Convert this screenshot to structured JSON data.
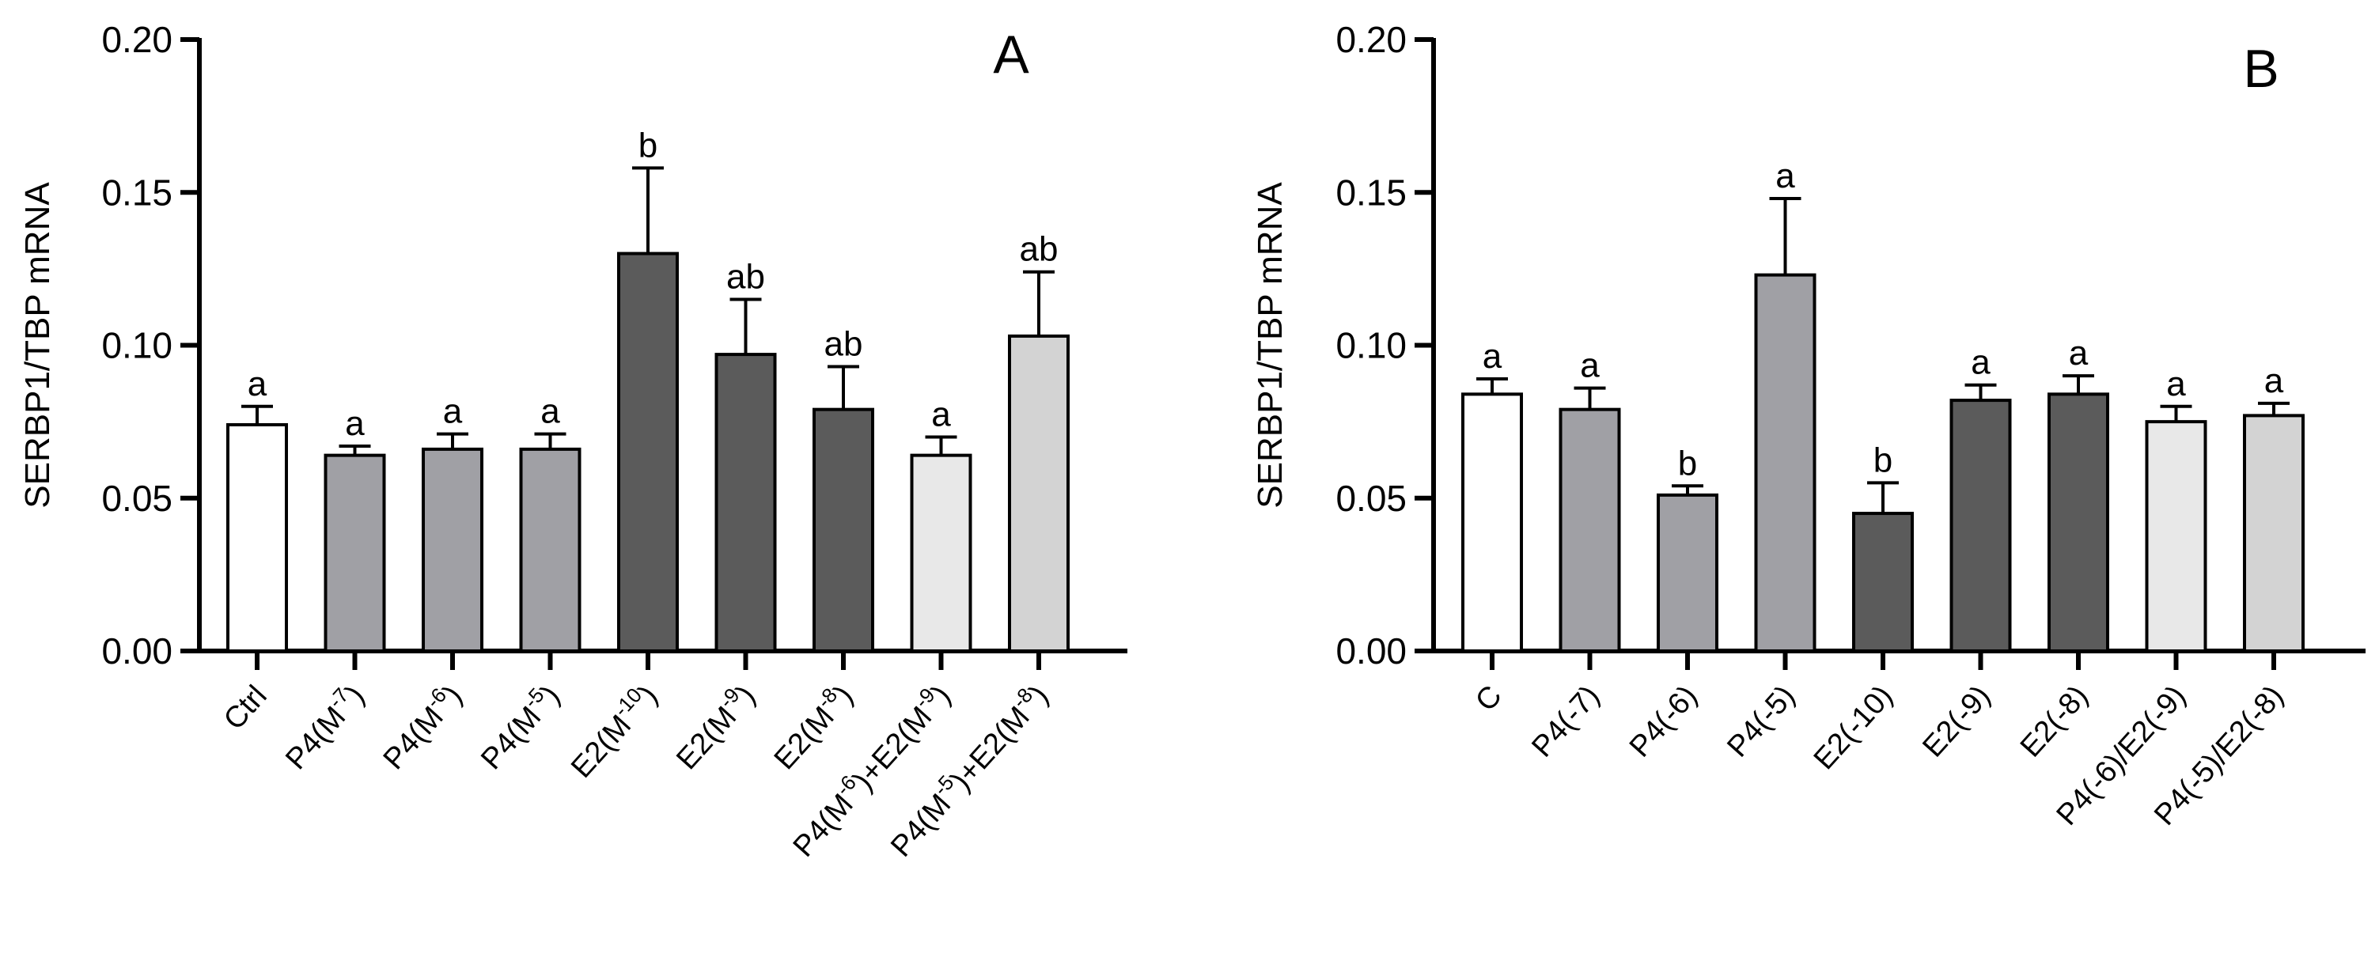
{
  "chart_data": [
    {
      "type": "bar",
      "panel_label": "A",
      "ylabel": "SERBP1/TBP mRNA",
      "xlabel": "",
      "ylim": [
        0,
        0.2
      ],
      "yticks": [
        "0.00",
        "0.05",
        "0.10",
        "0.15",
        "0.20"
      ],
      "categories": [
        {
          "parts": [
            {
              "t": "Ctrl"
            }
          ]
        },
        {
          "parts": [
            {
              "t": "P4(M"
            },
            {
              "t": "-7",
              "sup": true
            },
            {
              "t": ")"
            }
          ]
        },
        {
          "parts": [
            {
              "t": "P4(M"
            },
            {
              "t": "-6",
              "sup": true
            },
            {
              "t": ")"
            }
          ]
        },
        {
          "parts": [
            {
              "t": "P4(M"
            },
            {
              "t": "-5",
              "sup": true
            },
            {
              "t": ")"
            }
          ]
        },
        {
          "parts": [
            {
              "t": "E2(M"
            },
            {
              "t": "-10",
              "sup": true
            },
            {
              "t": ")"
            }
          ]
        },
        {
          "parts": [
            {
              "t": "E2(M"
            },
            {
              "t": "-9",
              "sup": true
            },
            {
              "t": ")"
            }
          ]
        },
        {
          "parts": [
            {
              "t": "E2(M"
            },
            {
              "t": "-8",
              "sup": true
            },
            {
              "t": ")"
            }
          ]
        },
        {
          "parts": [
            {
              "t": "P4(M"
            },
            {
              "t": "-6",
              "sup": true
            },
            {
              "t": ")+E2(M"
            },
            {
              "t": "-9",
              "sup": true
            },
            {
              "t": ")"
            }
          ]
        },
        {
          "parts": [
            {
              "t": "P4(M"
            },
            {
              "t": "-5",
              "sup": true
            },
            {
              "t": ")+E2(M"
            },
            {
              "t": "-8",
              "sup": true
            },
            {
              "t": ")"
            }
          ]
        }
      ],
      "values": [
        0.074,
        0.064,
        0.066,
        0.066,
        0.13,
        0.097,
        0.079,
        0.064,
        0.103
      ],
      "errors": [
        0.006,
        0.003,
        0.005,
        0.005,
        0.028,
        0.018,
        0.014,
        0.006,
        0.021
      ],
      "significance": [
        "a",
        "a",
        "a",
        "a",
        "b",
        "ab",
        "ab",
        "a",
        "ab"
      ],
      "bar_colors": [
        "#ffffff",
        "#a0a0a5",
        "#a0a0a5",
        "#a0a0a5",
        "#5b5b5b",
        "#5b5b5b",
        "#5b5b5b",
        "#e8e8e8",
        "#d3d3d3"
      ]
    },
    {
      "type": "bar",
      "panel_label": "B",
      "ylabel": "SERBP1/TBP mRNA",
      "xlabel": "",
      "ylim": [
        0,
        0.2
      ],
      "yticks": [
        "0.00",
        "0.05",
        "0.10",
        "0.15",
        "0.20"
      ],
      "categories": [
        {
          "parts": [
            {
              "t": "C"
            }
          ]
        },
        {
          "parts": [
            {
              "t": "P4(-7)"
            }
          ]
        },
        {
          "parts": [
            {
              "t": "P4(-6)"
            }
          ]
        },
        {
          "parts": [
            {
              "t": "P4(-5)"
            }
          ]
        },
        {
          "parts": [
            {
              "t": "E2(-10)"
            }
          ]
        },
        {
          "parts": [
            {
              "t": "E2(-9)"
            }
          ]
        },
        {
          "parts": [
            {
              "t": "E2(-8)"
            }
          ]
        },
        {
          "parts": [
            {
              "t": "P4(-6)/E2(-9)"
            }
          ]
        },
        {
          "parts": [
            {
              "t": "P4(-5)/E2(-8)"
            }
          ]
        }
      ],
      "values": [
        0.084,
        0.079,
        0.051,
        0.123,
        0.045,
        0.082,
        0.084,
        0.075,
        0.077
      ],
      "errors": [
        0.005,
        0.007,
        0.003,
        0.025,
        0.01,
        0.005,
        0.006,
        0.005,
        0.004
      ],
      "significance": [
        "a",
        "a",
        "b",
        "a",
        "b",
        "a",
        "a",
        "a",
        "a"
      ],
      "bar_colors": [
        "#ffffff",
        "#a0a0a5",
        "#a0a0a5",
        "#a0a0a5",
        "#5b5b5b",
        "#5b5b5b",
        "#5b5b5b",
        "#e8e8e8",
        "#d3d3d3"
      ]
    }
  ]
}
